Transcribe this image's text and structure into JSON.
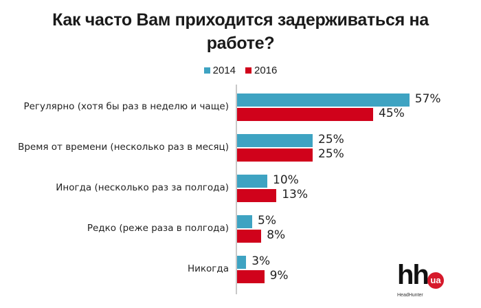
{
  "title": {
    "line1": "Как часто Вам приходится задерживаться на",
    "line2": "работе?"
  },
  "legend": [
    {
      "label": "2014",
      "color": "#3ea3c2"
    },
    {
      "label": "2016",
      "color": "#d0021b"
    }
  ],
  "categories": [
    {
      "label": "Регулярно (хотя бы раз в неделю и чаще)",
      "v2014": "57%",
      "v2016": "45%"
    },
    {
      "label": "Время от времени (несколько раз в месяц)",
      "v2014": "25%",
      "v2016": "25%"
    },
    {
      "label": "Иногда (несколько раз за полгода)",
      "v2014": "10%",
      "v2016": "13%"
    },
    {
      "label": "Редко (реже раза в полгода)",
      "v2014": "5%",
      "v2016": "8%"
    },
    {
      "label": "Никогда",
      "v2014": "3%",
      "v2016": "9%"
    }
  ],
  "logo": {
    "mark": "hh",
    "badge": "ua",
    "name": "HeadHunter"
  },
  "chart_data": {
    "type": "bar",
    "orientation": "horizontal",
    "title": "Как часто Вам приходится задерживаться на работе?",
    "categories": [
      "Регулярно (хотя бы раз в неделю и чаще)",
      "Время от времени (несколько раз в месяц)",
      "Иногда (несколько раз за полгода)",
      "Редко (реже раза в полгода)",
      "Никогда"
    ],
    "series": [
      {
        "name": "2014",
        "color": "#3ea3c2",
        "values": [
          57,
          25,
          10,
          5,
          3
        ]
      },
      {
        "name": "2016",
        "color": "#d0021b",
        "values": [
          45,
          25,
          13,
          8,
          9
        ]
      }
    ],
    "unit": "%",
    "xlabel": "",
    "ylabel": "",
    "data_labels": true,
    "grid": false,
    "legend_position": "top",
    "source_logo": "hh.ua HeadHunter"
  }
}
